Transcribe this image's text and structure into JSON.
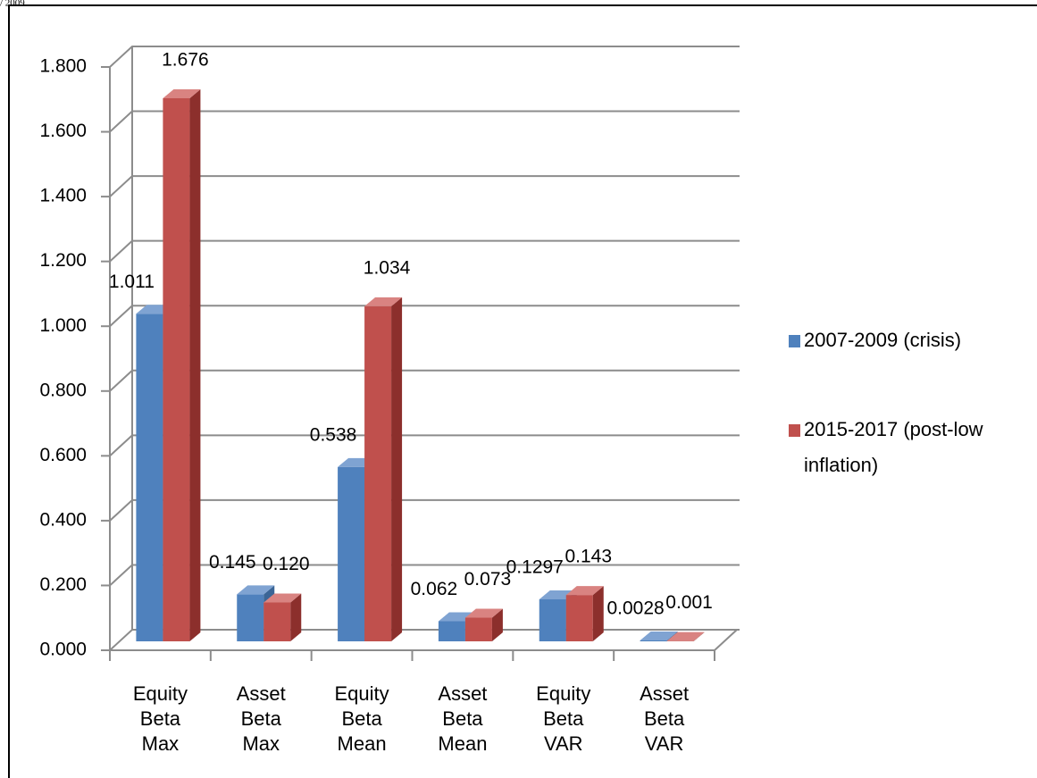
{
  "annotation": "/ 2009",
  "chart_data": {
    "type": "bar3d",
    "categories": [
      "Equity Beta Max",
      "Asset Beta Max",
      "Equity Beta Mean",
      "Asset Beta Mean",
      "Equity Beta VAR",
      "Asset Beta VAR"
    ],
    "series": [
      {
        "name": "2007-2009  (crisis)",
        "color": "#4f81bd",
        "values": [
          1.011,
          0.145,
          0.538,
          0.062,
          0.1297,
          0.0028
        ],
        "value_labels": [
          "1.011",
          "0.145",
          "0.538",
          "0.062",
          "0.1297",
          "0.0028"
        ]
      },
      {
        "name": "2015-2017  (post-low inflation)",
        "color": "#c0504d",
        "values": [
          1.676,
          0.12,
          1.034,
          0.073,
          0.143,
          0.001
        ],
        "value_labels": [
          "1.676",
          "0.120",
          "1.034",
          "0.073",
          "0.143",
          "0.001"
        ]
      }
    ],
    "ylim": [
      0,
      1.8
    ],
    "yticks": [
      {
        "value": 0,
        "label": "0.000"
      },
      {
        "value": 0.2,
        "label": "0.200"
      },
      {
        "value": 0.4,
        "label": "0.400"
      },
      {
        "value": 0.6,
        "label": "0.600"
      },
      {
        "value": 0.8,
        "label": "0.800"
      },
      {
        "value": 1.0,
        "label": "1.000"
      },
      {
        "value": 1.2,
        "label": "1.200"
      },
      {
        "value": 1.4,
        "label": "1.400"
      },
      {
        "value": 1.6,
        "label": "1.600"
      },
      {
        "value": 1.8,
        "label": "1.800"
      }
    ],
    "grid": true,
    "legend": "right"
  }
}
